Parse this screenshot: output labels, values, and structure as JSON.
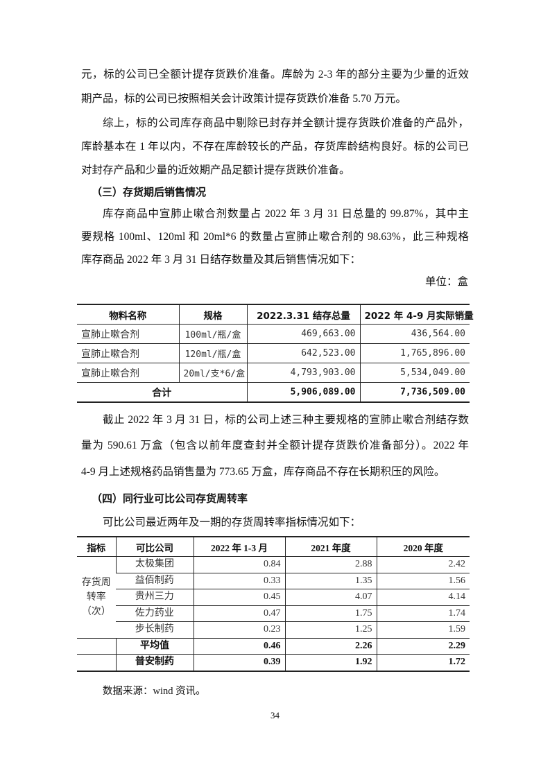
{
  "para1_lines": [
    "元，标的公司已全额计提存货跌价准备。库龄为 2-3 年的部分主要为少量的近效",
    "期产品，标的公司已按照相关会计政策计提存货跌价准备 5.70 万元。"
  ],
  "para2_lines": [
    "综上，标的公司库存商品中剔除已封存并全额计提存货跌价准备的产品外，",
    "库龄基本在 1 年以内，不存在库龄较长的产品，存货库龄结构良好。标的公司已",
    "对封存产品和少量的近效期产品足额计提存货跌价准备。"
  ],
  "heading3": "（三）存货期后销售情况",
  "para3_lines": [
    "库存商品中宣肺止嗽合剂数量占 2022 年 3 月 31 日总量的 99.87%，其中主",
    "要规格 100ml、120ml 和 20ml*6 的数量占宣肺止嗽合剂的 98.63%，此三种规格",
    "库存商品 2022 年 3 月 31 日结存数量及其后销售情况如下："
  ],
  "unit_label": "单位：盒",
  "table1": {
    "headers": [
      "物料名称",
      "规格",
      "2022.3.31 结存总量",
      "2022 年 4-9 月实际销量"
    ],
    "rows": [
      [
        "宣肺止嗽合剂",
        "100ml/瓶/盒",
        "469,663.00",
        "436,564.00"
      ],
      [
        "宣肺止嗽合剂",
        "120ml/瓶/盒",
        "642,523.00",
        "1,765,896.00"
      ],
      [
        "宣肺止嗽合剂",
        "20ml/支*6/盒",
        "4,793,903.00",
        "5,534,049.00"
      ]
    ],
    "total": [
      "合计",
      "5,906,089.00",
      "7,736,509.00"
    ]
  },
  "para4_lines": [
    "截止 2022 年 3 月 31 日，标的公司上述三种主要规格的宣肺止嗽合剂结存数",
    "量为 590.61 万盒（包含以前年度查封并全额计提存货跌价准备部分）。2022 年",
    "4-9 月上述规格药品销售量为 773.65 万盒，库存商品不存在长期积压的风险。"
  ],
  "heading4": "（四）同行业可比公司存货周转率",
  "para5": "可比公司最近两年及一期的存货周转率指标情况如下：",
  "table2": {
    "headers": [
      "指标",
      "可比公司",
      "2022 年 1-3 月",
      "2021 年度",
      "2020 年度"
    ],
    "indicator": "存货周转率（次）",
    "rows": [
      [
        "太极集团",
        "0.84",
        "2.88",
        "2.42"
      ],
      [
        "益佰制药",
        "0.33",
        "1.35",
        "1.56"
      ],
      [
        "贵州三力",
        "0.45",
        "4.07",
        "4.14"
      ],
      [
        "佐力药业",
        "0.47",
        "1.75",
        "1.74"
      ],
      [
        "步长制药",
        "0.23",
        "1.25",
        "1.59"
      ]
    ],
    "bold_rows": [
      [
        "平均值",
        "0.46",
        "2.26",
        "2.29"
      ],
      [
        "普安制药",
        "0.39",
        "1.92",
        "1.72"
      ]
    ]
  },
  "source": "数据来源：wind 资讯。",
  "page_number": "34"
}
